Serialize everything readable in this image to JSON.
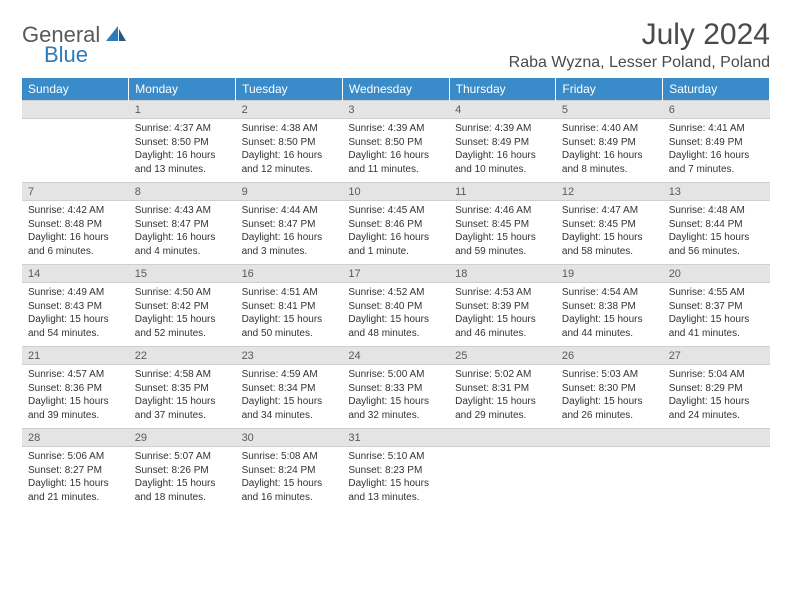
{
  "header": {
    "logo_part1": "General",
    "logo_part2": "Blue",
    "month_title": "July 2024",
    "location": "Raba Wyzna, Lesser Poland, Poland"
  },
  "colors": {
    "header_bg": "#3a8bc9",
    "header_text": "#ffffff",
    "daynum_bg": "#e4e4e4",
    "logo_accent": "#2b7bbd",
    "logo_gray": "#5a5a5a"
  },
  "daynames": [
    "Sunday",
    "Monday",
    "Tuesday",
    "Wednesday",
    "Thursday",
    "Friday",
    "Saturday"
  ],
  "weeks": [
    {
      "nums": [
        "",
        "1",
        "2",
        "3",
        "4",
        "5",
        "6"
      ],
      "cells": [
        {
          "empty": true
        },
        {
          "sunrise": "Sunrise: 4:37 AM",
          "sunset": "Sunset: 8:50 PM",
          "daylight1": "Daylight: 16 hours",
          "daylight2": "and 13 minutes."
        },
        {
          "sunrise": "Sunrise: 4:38 AM",
          "sunset": "Sunset: 8:50 PM",
          "daylight1": "Daylight: 16 hours",
          "daylight2": "and 12 minutes."
        },
        {
          "sunrise": "Sunrise: 4:39 AM",
          "sunset": "Sunset: 8:50 PM",
          "daylight1": "Daylight: 16 hours",
          "daylight2": "and 11 minutes."
        },
        {
          "sunrise": "Sunrise: 4:39 AM",
          "sunset": "Sunset: 8:49 PM",
          "daylight1": "Daylight: 16 hours",
          "daylight2": "and 10 minutes."
        },
        {
          "sunrise": "Sunrise: 4:40 AM",
          "sunset": "Sunset: 8:49 PM",
          "daylight1": "Daylight: 16 hours",
          "daylight2": "and 8 minutes."
        },
        {
          "sunrise": "Sunrise: 4:41 AM",
          "sunset": "Sunset: 8:49 PM",
          "daylight1": "Daylight: 16 hours",
          "daylight2": "and 7 minutes."
        }
      ]
    },
    {
      "nums": [
        "7",
        "8",
        "9",
        "10",
        "11",
        "12",
        "13"
      ],
      "cells": [
        {
          "sunrise": "Sunrise: 4:42 AM",
          "sunset": "Sunset: 8:48 PM",
          "daylight1": "Daylight: 16 hours",
          "daylight2": "and 6 minutes."
        },
        {
          "sunrise": "Sunrise: 4:43 AM",
          "sunset": "Sunset: 8:47 PM",
          "daylight1": "Daylight: 16 hours",
          "daylight2": "and 4 minutes."
        },
        {
          "sunrise": "Sunrise: 4:44 AM",
          "sunset": "Sunset: 8:47 PM",
          "daylight1": "Daylight: 16 hours",
          "daylight2": "and 3 minutes."
        },
        {
          "sunrise": "Sunrise: 4:45 AM",
          "sunset": "Sunset: 8:46 PM",
          "daylight1": "Daylight: 16 hours",
          "daylight2": "and 1 minute."
        },
        {
          "sunrise": "Sunrise: 4:46 AM",
          "sunset": "Sunset: 8:45 PM",
          "daylight1": "Daylight: 15 hours",
          "daylight2": "and 59 minutes."
        },
        {
          "sunrise": "Sunrise: 4:47 AM",
          "sunset": "Sunset: 8:45 PM",
          "daylight1": "Daylight: 15 hours",
          "daylight2": "and 58 minutes."
        },
        {
          "sunrise": "Sunrise: 4:48 AM",
          "sunset": "Sunset: 8:44 PM",
          "daylight1": "Daylight: 15 hours",
          "daylight2": "and 56 minutes."
        }
      ]
    },
    {
      "nums": [
        "14",
        "15",
        "16",
        "17",
        "18",
        "19",
        "20"
      ],
      "cells": [
        {
          "sunrise": "Sunrise: 4:49 AM",
          "sunset": "Sunset: 8:43 PM",
          "daylight1": "Daylight: 15 hours",
          "daylight2": "and 54 minutes."
        },
        {
          "sunrise": "Sunrise: 4:50 AM",
          "sunset": "Sunset: 8:42 PM",
          "daylight1": "Daylight: 15 hours",
          "daylight2": "and 52 minutes."
        },
        {
          "sunrise": "Sunrise: 4:51 AM",
          "sunset": "Sunset: 8:41 PM",
          "daylight1": "Daylight: 15 hours",
          "daylight2": "and 50 minutes."
        },
        {
          "sunrise": "Sunrise: 4:52 AM",
          "sunset": "Sunset: 8:40 PM",
          "daylight1": "Daylight: 15 hours",
          "daylight2": "and 48 minutes."
        },
        {
          "sunrise": "Sunrise: 4:53 AM",
          "sunset": "Sunset: 8:39 PM",
          "daylight1": "Daylight: 15 hours",
          "daylight2": "and 46 minutes."
        },
        {
          "sunrise": "Sunrise: 4:54 AM",
          "sunset": "Sunset: 8:38 PM",
          "daylight1": "Daylight: 15 hours",
          "daylight2": "and 44 minutes."
        },
        {
          "sunrise": "Sunrise: 4:55 AM",
          "sunset": "Sunset: 8:37 PM",
          "daylight1": "Daylight: 15 hours",
          "daylight2": "and 41 minutes."
        }
      ]
    },
    {
      "nums": [
        "21",
        "22",
        "23",
        "24",
        "25",
        "26",
        "27"
      ],
      "cells": [
        {
          "sunrise": "Sunrise: 4:57 AM",
          "sunset": "Sunset: 8:36 PM",
          "daylight1": "Daylight: 15 hours",
          "daylight2": "and 39 minutes."
        },
        {
          "sunrise": "Sunrise: 4:58 AM",
          "sunset": "Sunset: 8:35 PM",
          "daylight1": "Daylight: 15 hours",
          "daylight2": "and 37 minutes."
        },
        {
          "sunrise": "Sunrise: 4:59 AM",
          "sunset": "Sunset: 8:34 PM",
          "daylight1": "Daylight: 15 hours",
          "daylight2": "and 34 minutes."
        },
        {
          "sunrise": "Sunrise: 5:00 AM",
          "sunset": "Sunset: 8:33 PM",
          "daylight1": "Daylight: 15 hours",
          "daylight2": "and 32 minutes."
        },
        {
          "sunrise": "Sunrise: 5:02 AM",
          "sunset": "Sunset: 8:31 PM",
          "daylight1": "Daylight: 15 hours",
          "daylight2": "and 29 minutes."
        },
        {
          "sunrise": "Sunrise: 5:03 AM",
          "sunset": "Sunset: 8:30 PM",
          "daylight1": "Daylight: 15 hours",
          "daylight2": "and 26 minutes."
        },
        {
          "sunrise": "Sunrise: 5:04 AM",
          "sunset": "Sunset: 8:29 PM",
          "daylight1": "Daylight: 15 hours",
          "daylight2": "and 24 minutes."
        }
      ]
    },
    {
      "nums": [
        "28",
        "29",
        "30",
        "31",
        "",
        "",
        ""
      ],
      "cells": [
        {
          "sunrise": "Sunrise: 5:06 AM",
          "sunset": "Sunset: 8:27 PM",
          "daylight1": "Daylight: 15 hours",
          "daylight2": "and 21 minutes."
        },
        {
          "sunrise": "Sunrise: 5:07 AM",
          "sunset": "Sunset: 8:26 PM",
          "daylight1": "Daylight: 15 hours",
          "daylight2": "and 18 minutes."
        },
        {
          "sunrise": "Sunrise: 5:08 AM",
          "sunset": "Sunset: 8:24 PM",
          "daylight1": "Daylight: 15 hours",
          "daylight2": "and 16 minutes."
        },
        {
          "sunrise": "Sunrise: 5:10 AM",
          "sunset": "Sunset: 8:23 PM",
          "daylight1": "Daylight: 15 hours",
          "daylight2": "and 13 minutes."
        },
        {
          "empty": true
        },
        {
          "empty": true
        },
        {
          "empty": true
        }
      ]
    }
  ]
}
